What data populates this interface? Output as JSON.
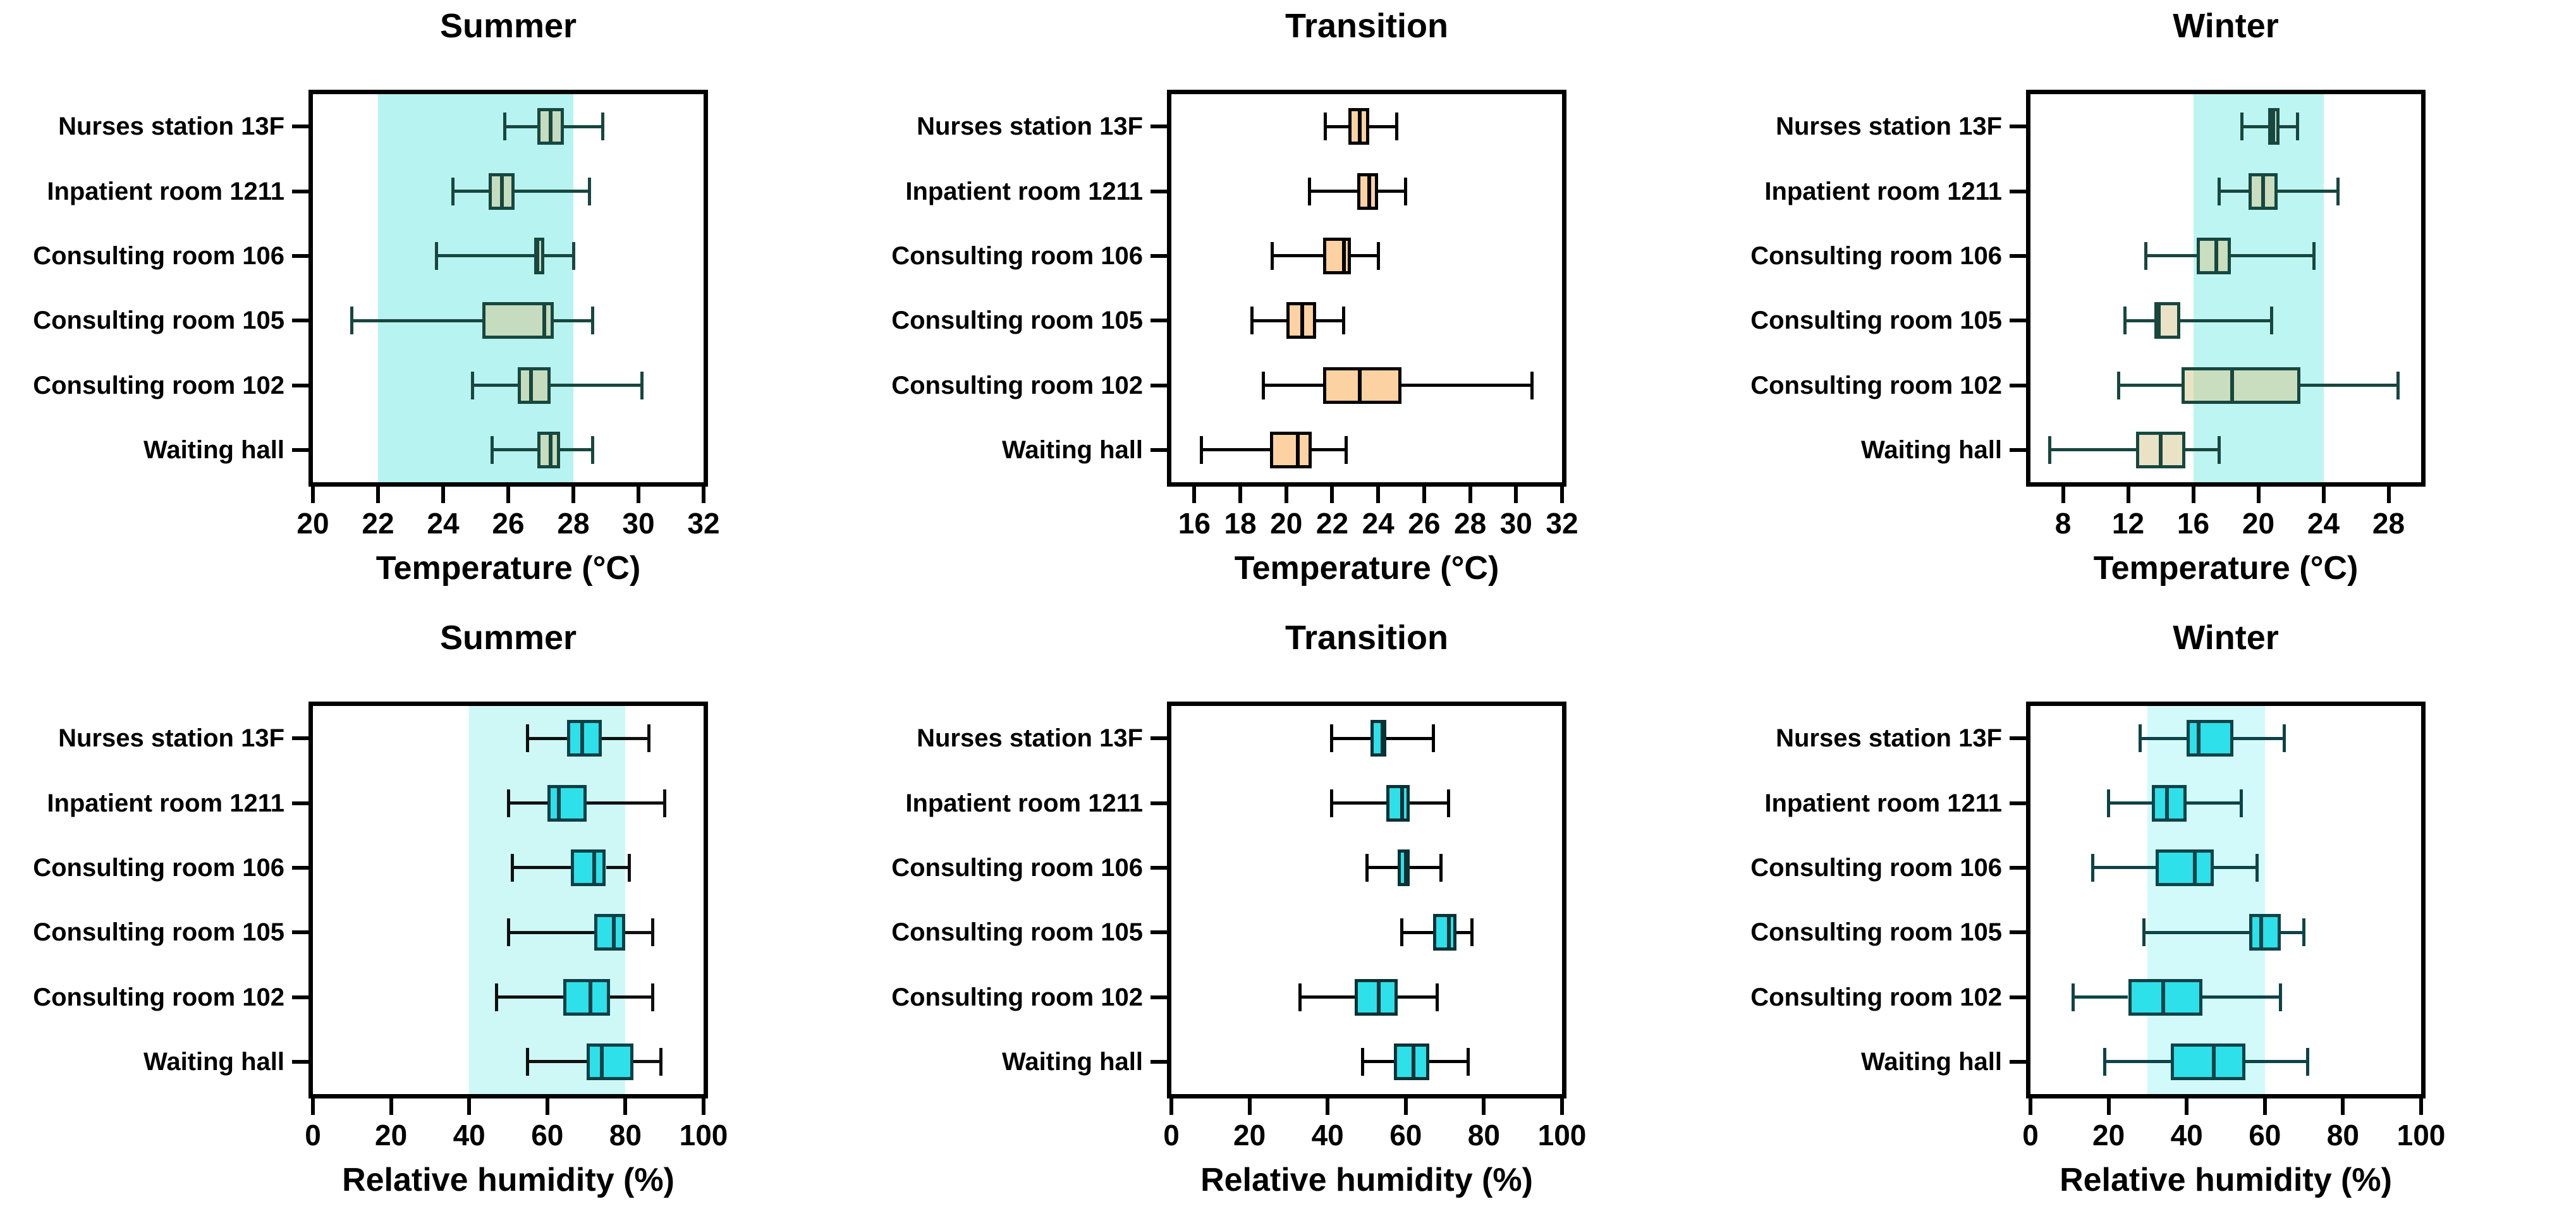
{
  "figure_title": "",
  "chart_data": [
    {
      "type": "boxplot",
      "orientation": "horizontal",
      "title": "Summer",
      "xlabel": "Temperature (°C)",
      "xlim": [
        20,
        32
      ],
      "tick_values": [
        20,
        22,
        24,
        26,
        28,
        30,
        32
      ],
      "tick_labels": [
        "20",
        "22",
        "24",
        "26",
        "28",
        "30",
        "32"
      ],
      "comfort_band": {
        "from": 22,
        "to": 28,
        "color": "#b7f3f0"
      },
      "box_fill": "rgba(213,198,140,0.5)",
      "box_stroke": "#17473f",
      "whisker_color": "#17473f",
      "rows": [
        {
          "room": "Nurses station 13F",
          "min": 25.9,
          "q1": 26.9,
          "median": 27.3,
          "q3": 27.7,
          "max": 28.9
        },
        {
          "room": "Inpatient room 1211",
          "min": 24.3,
          "q1": 25.4,
          "median": 25.8,
          "q3": 26.2,
          "max": 28.5
        },
        {
          "room": "Consulting room 106",
          "min": 23.8,
          "q1": 26.8,
          "median": 26.9,
          "q3": 27.1,
          "max": 28.0
        },
        {
          "room": "Consulting room 105",
          "min": 21.2,
          "q1": 25.2,
          "median": 27.1,
          "q3": 27.4,
          "max": 28.6
        },
        {
          "room": "Consulting room 102",
          "min": 24.9,
          "q1": 26.3,
          "median": 26.7,
          "q3": 27.3,
          "max": 30.1
        },
        {
          "room": "Waiting hall",
          "min": 25.5,
          "q1": 26.9,
          "median": 27.3,
          "q3": 27.6,
          "max": 28.6
        }
      ]
    },
    {
      "type": "boxplot",
      "orientation": "horizontal",
      "title": "Transition",
      "xlabel": "Temperature (°C)",
      "xlim": [
        15,
        32
      ],
      "tick_values": [
        16,
        18,
        20,
        22,
        24,
        26,
        28,
        30,
        32
      ],
      "tick_labels": [
        "16",
        "18",
        "20",
        "22",
        "24",
        "26",
        "28",
        "30",
        "32"
      ],
      "comfort_band": null,
      "box_fill": "#fcd2a2",
      "box_stroke": "#000000",
      "whisker_color": "#000000",
      "rows": [
        {
          "room": "Nurses station 13F",
          "min": 21.7,
          "q1": 22.7,
          "median": 23.2,
          "q3": 23.6,
          "max": 24.8
        },
        {
          "room": "Inpatient room 1211",
          "min": 21.0,
          "q1": 23.1,
          "median": 23.6,
          "q3": 24.0,
          "max": 25.2
        },
        {
          "room": "Consulting room 106",
          "min": 19.4,
          "q1": 21.6,
          "median": 22.5,
          "q3": 22.8,
          "max": 24.0
        },
        {
          "room": "Consulting room 105",
          "min": 18.5,
          "q1": 20.0,
          "median": 20.7,
          "q3": 21.3,
          "max": 22.5
        },
        {
          "room": "Consulting room 102",
          "min": 19.0,
          "q1": 21.6,
          "median": 23.2,
          "q3": 25.0,
          "max": 30.7
        },
        {
          "room": "Waiting hall",
          "min": 16.3,
          "q1": 19.3,
          "median": 20.5,
          "q3": 21.1,
          "max": 22.6
        }
      ]
    },
    {
      "type": "boxplot",
      "orientation": "horizontal",
      "title": "Winter",
      "xlabel": "Temperature (°C)",
      "xlim": [
        6,
        30
      ],
      "tick_values": [
        8,
        12,
        16,
        20,
        24,
        28
      ],
      "tick_labels": [
        "8",
        "12",
        "16",
        "20",
        "24",
        "28"
      ],
      "comfort_band": {
        "from": 16,
        "to": 24,
        "color": "#bdf5f2"
      },
      "box_fill": "rgba(213,198,140,0.5)",
      "box_stroke": "#17473f",
      "whisker_color": "#17473f",
      "rows": [
        {
          "room": "Nurses station 13F",
          "min": 19.0,
          "q1": 20.6,
          "median": 20.9,
          "q3": 21.3,
          "max": 22.4
        },
        {
          "room": "Inpatient room 1211",
          "min": 17.6,
          "q1": 19.4,
          "median": 20.3,
          "q3": 21.2,
          "max": 24.9
        },
        {
          "room": "Consulting room 106",
          "min": 13.1,
          "q1": 16.2,
          "median": 17.4,
          "q3": 18.3,
          "max": 23.4
        },
        {
          "room": "Consulting room 105",
          "min": 11.8,
          "q1": 13.6,
          "median": 13.9,
          "q3": 15.2,
          "max": 20.8
        },
        {
          "room": "Consulting room 102",
          "min": 11.4,
          "q1": 15.3,
          "median": 18.4,
          "q3": 22.6,
          "max": 28.6
        },
        {
          "room": "Waiting hall",
          "min": 7.2,
          "q1": 12.5,
          "median": 14.0,
          "q3": 15.5,
          "max": 17.6
        }
      ]
    },
    {
      "type": "boxplot",
      "orientation": "horizontal",
      "title": "Summer",
      "xlabel": "Relative humidity (%)",
      "xlim": [
        0,
        100
      ],
      "tick_values": [
        0,
        20,
        40,
        60,
        80,
        100
      ],
      "tick_labels": [
        "0",
        "20",
        "40",
        "60",
        "80",
        "100"
      ],
      "comfort_band": {
        "from": 40,
        "to": 80,
        "color": "#cdf8f6"
      },
      "box_fill": "#2ee0e9",
      "box_stroke": "#0d4046",
      "whisker_color": "#101010",
      "rows": [
        {
          "room": "Nurses station 13F",
          "min": 55,
          "q1": 65,
          "median": 69,
          "q3": 74,
          "max": 86
        },
        {
          "room": "Inpatient room 1211",
          "min": 50,
          "q1": 60,
          "median": 63,
          "q3": 70,
          "max": 90
        },
        {
          "room": "Consulting room 106",
          "min": 51,
          "q1": 66,
          "median": 72,
          "q3": 75,
          "max": 81
        },
        {
          "room": "Consulting room 105",
          "min": 50,
          "q1": 72,
          "median": 77,
          "q3": 80,
          "max": 87
        },
        {
          "room": "Consulting room 102",
          "min": 47,
          "q1": 64,
          "median": 71,
          "q3": 76,
          "max": 87
        },
        {
          "room": "Waiting hall",
          "min": 55,
          "q1": 70,
          "median": 74,
          "q3": 82,
          "max": 89
        }
      ]
    },
    {
      "type": "boxplot",
      "orientation": "horizontal",
      "title": "Transition",
      "xlabel": "Relative humidity (%)",
      "xlim": [
        0,
        100
      ],
      "tick_values": [
        0,
        20,
        40,
        60,
        80,
        100
      ],
      "tick_labels": [
        "0",
        "20",
        "40",
        "60",
        "80",
        "100"
      ],
      "comfort_band": null,
      "box_fill": "#2ee0e9",
      "box_stroke": "#0a3134",
      "whisker_color": "#000000",
      "rows": [
        {
          "room": "Nurses station 13F",
          "min": 41,
          "q1": 51,
          "median": 54,
          "q3": 55,
          "max": 67
        },
        {
          "room": "Inpatient room 1211",
          "min": 41,
          "q1": 55,
          "median": 59,
          "q3": 61,
          "max": 71
        },
        {
          "room": "Consulting room 106",
          "min": 50,
          "q1": 58,
          "median": 60,
          "q3": 61,
          "max": 69
        },
        {
          "room": "Consulting room 105",
          "min": 59,
          "q1": 67,
          "median": 71,
          "q3": 73,
          "max": 77
        },
        {
          "room": "Consulting room 102",
          "min": 33,
          "q1": 47,
          "median": 53,
          "q3": 58,
          "max": 68
        },
        {
          "room": "Waiting hall",
          "min": 49,
          "q1": 57,
          "median": 62,
          "q3": 66,
          "max": 76
        }
      ]
    },
    {
      "type": "boxplot",
      "orientation": "horizontal",
      "title": "Winter",
      "xlabel": "Relative humidity (%)",
      "xlim": [
        0,
        100
      ],
      "tick_values": [
        0,
        20,
        40,
        60,
        80,
        100
      ],
      "tick_labels": [
        "0",
        "20",
        "40",
        "60",
        "80",
        "100"
      ],
      "comfort_band": {
        "from": 30,
        "to": 60,
        "color": "#d2fafa"
      },
      "box_fill": "#2ee0e9",
      "box_stroke": "#0e4347",
      "whisker_color": "#0e4347",
      "rows": [
        {
          "room": "Nurses station 13F",
          "min": 28,
          "q1": 40,
          "median": 43,
          "q3": 52,
          "max": 65
        },
        {
          "room": "Inpatient room 1211",
          "min": 20,
          "q1": 31,
          "median": 35,
          "q3": 40,
          "max": 54
        },
        {
          "room": "Consulting room 106",
          "min": 16,
          "q1": 32,
          "median": 42,
          "q3": 47,
          "max": 58
        },
        {
          "room": "Consulting room 105",
          "min": 29,
          "q1": 56,
          "median": 59,
          "q3": 64,
          "max": 70
        },
        {
          "room": "Consulting room 102",
          "min": 11,
          "q1": 25,
          "median": 34,
          "q3": 44,
          "max": 64
        },
        {
          "room": "Waiting hall",
          "min": 19,
          "q1": 36,
          "median": 47,
          "q3": 55,
          "max": 71
        }
      ]
    }
  ]
}
